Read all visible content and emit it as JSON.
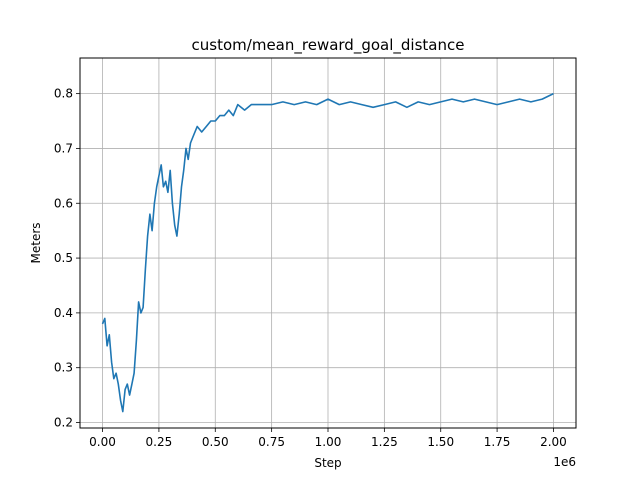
{
  "chart_data": {
    "type": "line",
    "title": "custom/mean_reward_goal_distance",
    "xlabel": "Step",
    "ylabel": "Meters",
    "x_offset_label": "1e6",
    "xlim": [
      -0.1,
      2.1
    ],
    "ylim": [
      0.19,
      0.865
    ],
    "x_ticks": [
      0.0,
      0.25,
      0.5,
      0.75,
      1.0,
      1.25,
      1.5,
      1.75,
      2.0
    ],
    "x_tick_labels": [
      "0.00",
      "0.25",
      "0.50",
      "0.75",
      "1.00",
      "1.25",
      "1.50",
      "1.75",
      "2.00"
    ],
    "y_ticks": [
      0.2,
      0.3,
      0.4,
      0.5,
      0.6,
      0.7,
      0.8
    ],
    "y_tick_labels": [
      "0.2",
      "0.3",
      "0.4",
      "0.5",
      "0.6",
      "0.7",
      "0.8"
    ],
    "grid": true,
    "line_color": "#1f77b4",
    "series": [
      {
        "x": [
          0.0,
          0.01,
          0.02,
          0.03,
          0.04,
          0.05,
          0.06,
          0.07,
          0.08,
          0.09,
          0.1,
          0.11,
          0.12,
          0.13,
          0.14,
          0.15,
          0.16,
          0.17,
          0.18,
          0.19,
          0.2,
          0.21,
          0.22,
          0.23,
          0.24,
          0.25,
          0.26,
          0.27,
          0.28,
          0.29,
          0.3,
          0.31,
          0.32,
          0.33,
          0.34,
          0.35,
          0.36,
          0.37,
          0.38,
          0.39,
          0.4,
          0.42,
          0.44,
          0.46,
          0.48,
          0.5,
          0.52,
          0.54,
          0.56,
          0.58,
          0.6,
          0.63,
          0.66,
          0.7,
          0.75,
          0.8,
          0.85,
          0.9,
          0.95,
          1.0,
          1.05,
          1.1,
          1.15,
          1.2,
          1.25,
          1.3,
          1.35,
          1.4,
          1.45,
          1.5,
          1.55,
          1.6,
          1.65,
          1.7,
          1.75,
          1.8,
          1.85,
          1.9,
          1.95,
          2.0
        ],
        "values": [
          0.38,
          0.39,
          0.34,
          0.36,
          0.31,
          0.28,
          0.29,
          0.27,
          0.24,
          0.22,
          0.26,
          0.27,
          0.25,
          0.27,
          0.29,
          0.35,
          0.42,
          0.4,
          0.41,
          0.48,
          0.54,
          0.58,
          0.55,
          0.6,
          0.63,
          0.65,
          0.67,
          0.63,
          0.64,
          0.62,
          0.66,
          0.6,
          0.56,
          0.54,
          0.58,
          0.63,
          0.66,
          0.7,
          0.68,
          0.71,
          0.72,
          0.74,
          0.73,
          0.74,
          0.75,
          0.75,
          0.76,
          0.76,
          0.77,
          0.76,
          0.78,
          0.77,
          0.78,
          0.78,
          0.78,
          0.785,
          0.78,
          0.785,
          0.78,
          0.79,
          0.78,
          0.785,
          0.78,
          0.775,
          0.78,
          0.785,
          0.775,
          0.785,
          0.78,
          0.785,
          0.79,
          0.785,
          0.79,
          0.785,
          0.78,
          0.785,
          0.79,
          0.785,
          0.79,
          0.8
        ]
      }
    ]
  }
}
